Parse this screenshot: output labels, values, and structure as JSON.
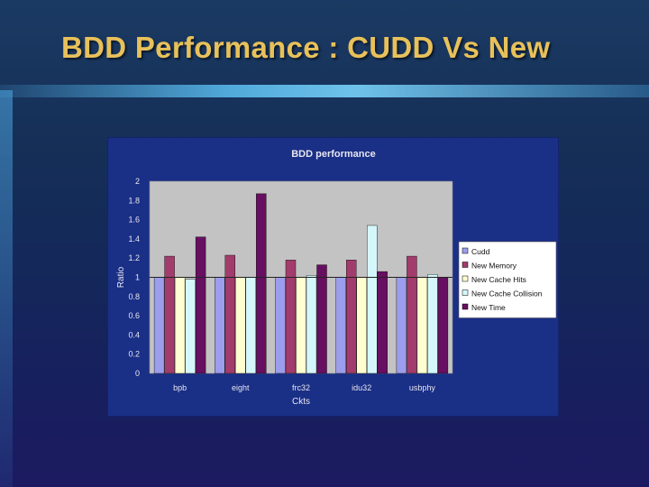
{
  "slide": {
    "title": "BDD Performance : CUDD Vs New"
  },
  "colors": {
    "title_text": "#e8c15a",
    "chart_frame_bg": "#1a2f86",
    "plot_bg": "#c3c3c3"
  },
  "chart_data": {
    "type": "bar",
    "title": "BDD performance",
    "xlabel": "Ckts",
    "ylabel": "Ratio",
    "ylim": [
      0,
      2
    ],
    "yticks": [
      "0",
      "0.2",
      "0.4",
      "0.6",
      "0.8",
      "1",
      "1.2",
      "1.4",
      "1.6",
      "1.8",
      "2"
    ],
    "grid": false,
    "legend_position": "right",
    "categories": [
      "bpb",
      "eight",
      "frc32",
      "idu32",
      "usbphy"
    ],
    "series": [
      {
        "name": "Cudd",
        "color": "#9d9dee",
        "values": [
          1.0,
          1.0,
          1.0,
          1.0,
          1.0
        ]
      },
      {
        "name": "New Memory",
        "color": "#a23c6c",
        "values": [
          1.22,
          1.23,
          1.18,
          1.18,
          1.22
        ]
      },
      {
        "name": "New Cache Hits",
        "color": "#fefed0",
        "values": [
          1.0,
          1.0,
          1.0,
          1.0,
          1.0
        ]
      },
      {
        "name": "New Cache Collision",
        "color": "#d5f7fb",
        "values": [
          0.98,
          1.0,
          1.02,
          1.54,
          1.03
        ]
      },
      {
        "name": "New Time",
        "color": "#670f61",
        "values": [
          1.42,
          1.87,
          1.13,
          1.06,
          1.0
        ]
      }
    ]
  }
}
